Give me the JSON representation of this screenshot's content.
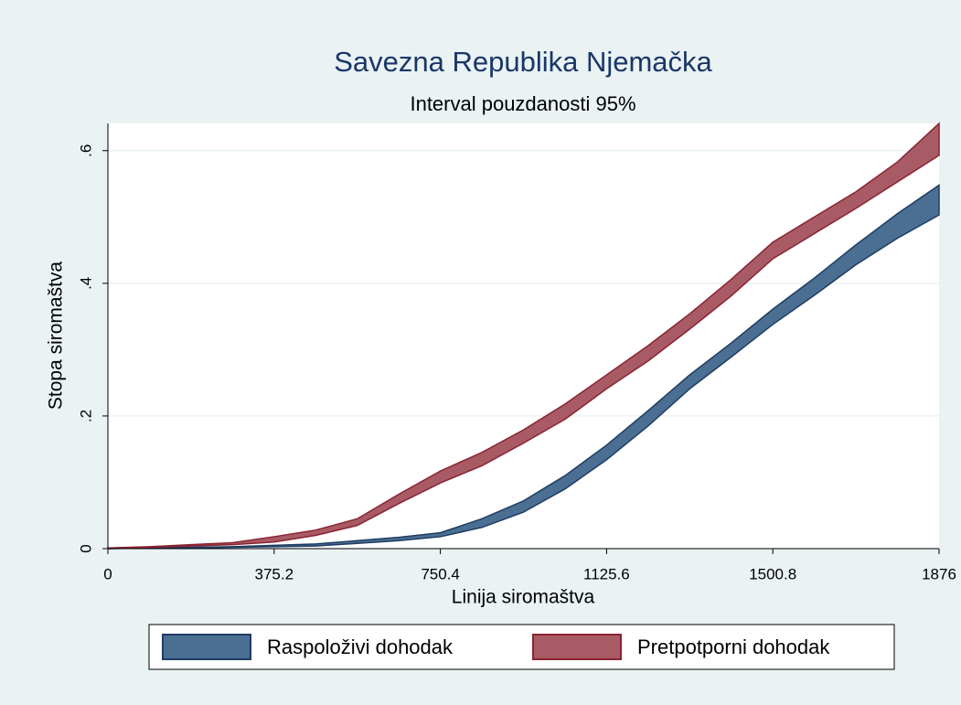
{
  "chart_data": {
    "type": "band",
    "title": "Savezna Republika Njemačka",
    "subtitle": "Interval pouzdanosti 95%",
    "x_label": "Linija siromaštva",
    "y_label": "Stopa siromaštva",
    "x": [
      0,
      93.8,
      187.6,
      281.4,
      375.2,
      469,
      562.8,
      656.6,
      750.4,
      844.2,
      938,
      1031.8,
      1125.6,
      1219.4,
      1313.2,
      1407,
      1500.8,
      1594.6,
      1688.4,
      1782.2,
      1876
    ],
    "series": [
      {
        "name": "Raspoloživi dohodak",
        "color": "#4a6f92",
        "edge": "#1f3d63",
        "lower": [
          0,
          0.001,
          0.001,
          0.002,
          0.003,
          0.004,
          0.008,
          0.012,
          0.018,
          0.032,
          0.055,
          0.09,
          0.134,
          0.185,
          0.241,
          0.289,
          0.338,
          0.382,
          0.428,
          0.468,
          0.503
        ],
        "upper": [
          0.001,
          0.002,
          0.002,
          0.003,
          0.005,
          0.007,
          0.012,
          0.017,
          0.024,
          0.045,
          0.072,
          0.11,
          0.156,
          0.208,
          0.262,
          0.31,
          0.361,
          0.408,
          0.458,
          0.505,
          0.548
        ]
      },
      {
        "name": "Pretpotporni dohodak",
        "color": "#a85b64",
        "edge": "#8a2333",
        "lower": [
          0,
          0.002,
          0.004,
          0.006,
          0.01,
          0.02,
          0.035,
          0.068,
          0.099,
          0.125,
          0.159,
          0.195,
          0.241,
          0.283,
          0.331,
          0.381,
          0.437,
          0.475,
          0.513,
          0.553,
          0.593
        ],
        "upper": [
          0.001,
          0.003,
          0.006,
          0.009,
          0.018,
          0.028,
          0.045,
          0.082,
          0.117,
          0.145,
          0.179,
          0.218,
          0.262,
          0.306,
          0.354,
          0.406,
          0.462,
          0.5,
          0.538,
          0.583,
          0.641
        ]
      }
    ],
    "xlim": [
      0,
      1876
    ],
    "xticks": [
      0,
      375.2,
      750.4,
      1125.6,
      1500.8,
      1876
    ],
    "ylim": [
      0,
      0.641
    ],
    "yticks": [
      0,
      {
        "value": 0.2,
        "label": ".2"
      },
      {
        "value": 0.4,
        "label": ".4"
      },
      {
        "value": 0.6,
        "label": ".6"
      }
    ],
    "grid": true
  }
}
